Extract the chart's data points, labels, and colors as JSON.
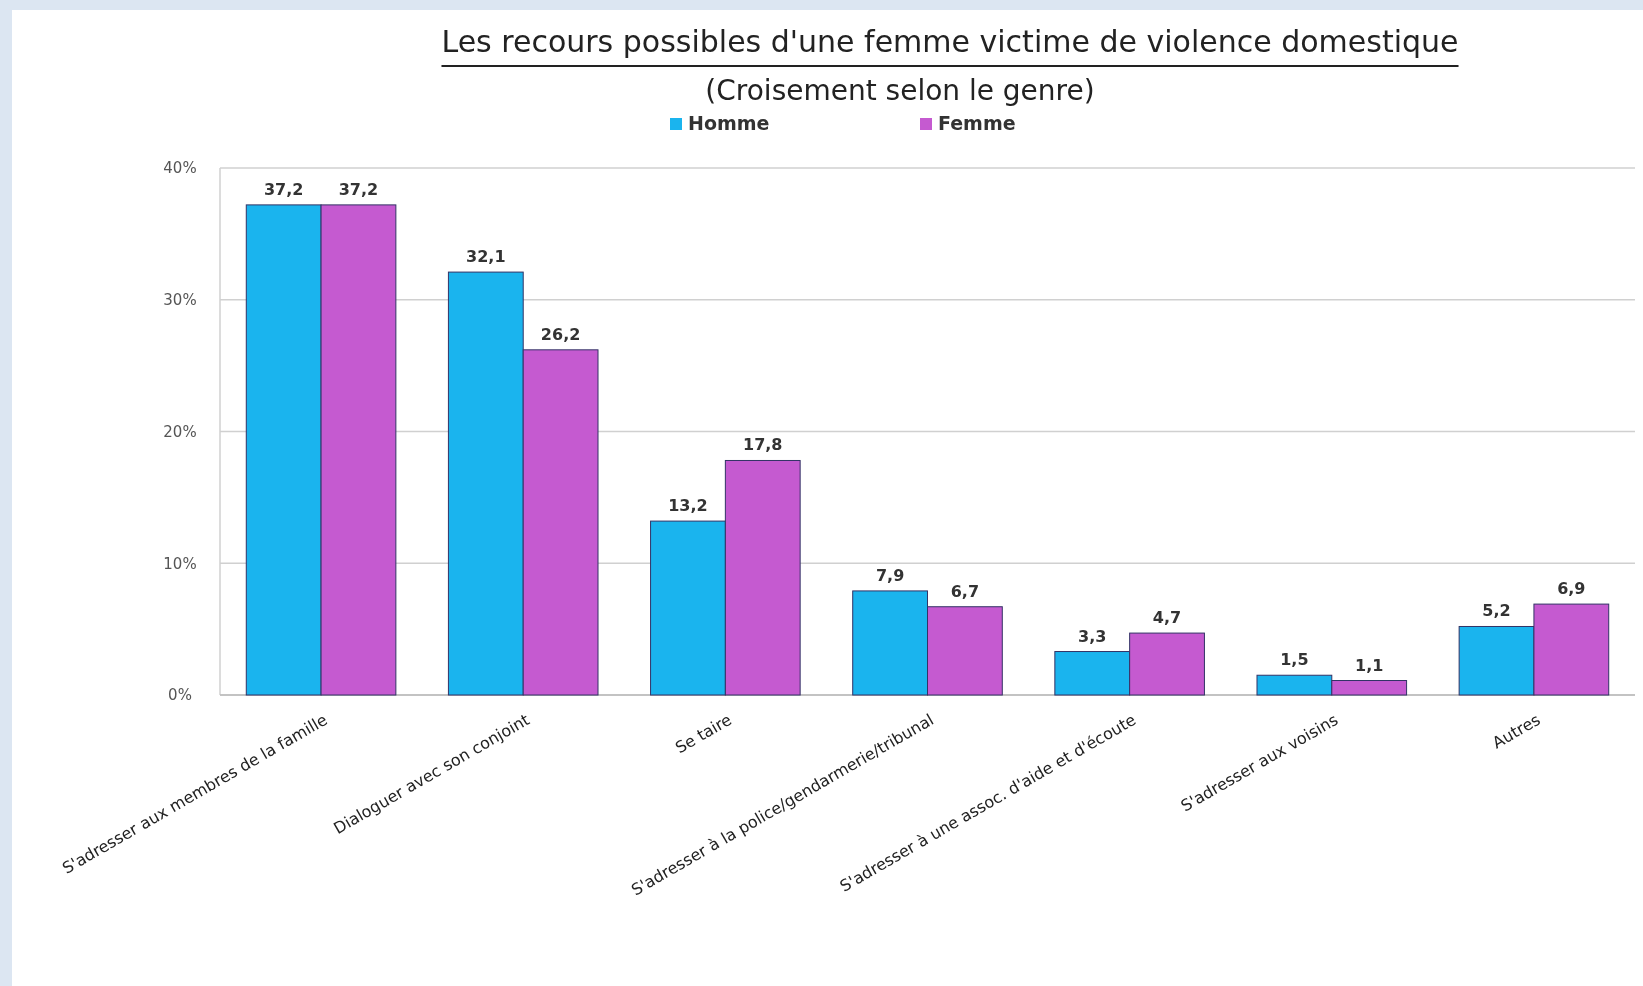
{
  "chart_data": {
    "type": "bar",
    "title": "Les recours possibles d'une femme victime de violence domestique",
    "subtitle": "(Croisement selon le genre)",
    "categories": [
      "S'adresser aux membres de la famille",
      "Dialoguer avec son conjoint",
      "Se taire",
      "S'adresser à la police/gendarmerie/tribunal",
      "S'adresser à une assoc. d'aide et d'écoute",
      "S'adresser aux voisins",
      "Autres"
    ],
    "series": [
      {
        "name": "Homme",
        "color": "#1ab4ee",
        "values": [
          37.2,
          32.1,
          13.2,
          7.9,
          3.3,
          1.5,
          5.2
        ],
        "value_labels": [
          "37,2",
          "32,1",
          "13,2",
          "7,9",
          "3,3",
          "1,5",
          "5,2"
        ]
      },
      {
        "name": "Femme",
        "color": "#c55ad0",
        "values": [
          37.2,
          26.2,
          17.8,
          6.7,
          4.7,
          1.1,
          6.9
        ],
        "value_labels": [
          "37,2",
          "26,2",
          "17,8",
          "6,7",
          "4,7",
          "1,1",
          "6,9"
        ]
      }
    ],
    "ylim": [
      0,
      40
    ],
    "yticks": [
      {
        "value": 0,
        "label": "0%"
      },
      {
        "value": 10,
        "label": "10%"
      },
      {
        "value": 20,
        "label": "20%"
      },
      {
        "value": 30,
        "label": "30%"
      },
      {
        "value": 40,
        "label": "40%"
      }
    ],
    "grid": "y",
    "legend": "top"
  }
}
